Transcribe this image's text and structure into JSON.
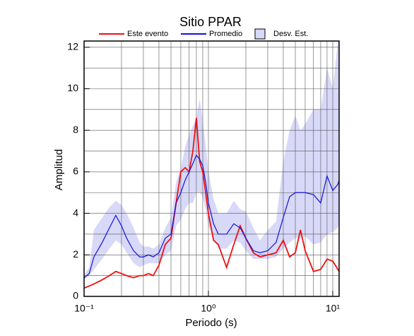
{
  "chart_data": {
    "type": "line",
    "title": "Sitio PPAR",
    "xlabel": "Periodo (s)",
    "ylabel": "Amplitud",
    "log_x": true,
    "grid": true,
    "xlim": [
      0.1,
      11.25
    ],
    "ylim": [
      0,
      12.3
    ],
    "xticks": [
      {
        "value": 0.1,
        "label": "10⁻¹"
      },
      {
        "value": 1,
        "label": "10⁰"
      },
      {
        "value": 10,
        "label": "10¹"
      }
    ],
    "x_minor_ticks": [
      0.2,
      0.3,
      0.4,
      0.5,
      0.6,
      0.7,
      0.8,
      0.9,
      2,
      3,
      4,
      5,
      6,
      7,
      8,
      9
    ],
    "yticks": [
      0,
      2,
      4,
      6,
      8,
      10,
      12
    ],
    "y_minor_ticks": [
      1,
      3,
      5,
      7,
      9,
      11
    ],
    "x": [
      0.1,
      0.11,
      0.12,
      0.14,
      0.16,
      0.18,
      0.2,
      0.22,
      0.25,
      0.28,
      0.3,
      0.33,
      0.36,
      0.4,
      0.45,
      0.5,
      0.55,
      0.6,
      0.65,
      0.7,
      0.75,
      0.8,
      0.85,
      0.9,
      0.95,
      1.0,
      1.1,
      1.2,
      1.4,
      1.6,
      1.8,
      2.0,
      2.3,
      2.6,
      3.0,
      3.5,
      4.0,
      4.5,
      5.0,
      5.5,
      6.0,
      7.0,
      8.0,
      9.0,
      10,
      11,
      11.25
    ],
    "band": {
      "name": "Desv. Est.",
      "color": "#d8d8f8",
      "lower": [
        0.8,
        1.0,
        1.3,
        1.8,
        2.3,
        2.7,
        2.5,
        2.1,
        1.6,
        1.4,
        1.5,
        1.6,
        1.6,
        1.6,
        2.0,
        2.2,
        3.4,
        3.7,
        4.2,
        4.5,
        4.5,
        5.0,
        5.0,
        4.8,
        4.2,
        3.4,
        2.8,
        2.3,
        2.3,
        2.7,
        2.6,
        2.2,
        1.8,
        1.8,
        1.8,
        1.9,
        2.3,
        2.6,
        2.8,
        2.8,
        2.9,
        2.5,
        2.6,
        3.0,
        3.1,
        3.3,
        3.5
      ],
      "upper": [
        1.0,
        1.4,
        3.2,
        3.8,
        4.3,
        4.6,
        4.4,
        4.0,
        3.3,
        2.6,
        2.4,
        2.4,
        2.3,
        2.5,
        3.3,
        3.8,
        5.5,
        6.2,
        7.2,
        7.8,
        8.2,
        8.6,
        9.5,
        8.5,
        7.3,
        6.0,
        4.7,
        4.0,
        4.0,
        4.6,
        4.2,
        4.1,
        3.3,
        2.7,
        3.2,
        3.6,
        6.5,
        8.0,
        8.7,
        8.0,
        8.3,
        9.0,
        9.0,
        11.0,
        10.0,
        12.3,
        12.3
      ]
    },
    "series": [
      {
        "name": "Este evento",
        "color": "#ee1111",
        "values": [
          0.4,
          0.5,
          0.6,
          0.8,
          1.0,
          1.2,
          1.1,
          1.0,
          0.9,
          1.0,
          1.0,
          1.1,
          1.0,
          1.5,
          2.5,
          2.8,
          4.5,
          6.0,
          6.2,
          6.0,
          7.0,
          8.6,
          6.5,
          6.0,
          5.0,
          4.0,
          2.7,
          2.5,
          1.4,
          2.5,
          3.4,
          2.8,
          2.1,
          1.9,
          2.0,
          2.1,
          2.7,
          1.9,
          2.1,
          3.2,
          2.2,
          1.2,
          1.3,
          1.8,
          1.7,
          1.3,
          1.2
        ]
      },
      {
        "name": "Promedio",
        "color": "#1111dd",
        "values": [
          0.9,
          1.1,
          1.9,
          2.6,
          3.3,
          3.9,
          3.4,
          2.8,
          2.2,
          1.9,
          1.9,
          2.0,
          1.9,
          2.1,
          2.8,
          3.0,
          4.5,
          5.0,
          5.6,
          6.0,
          6.4,
          6.8,
          6.6,
          6.3,
          5.5,
          4.5,
          3.5,
          3.0,
          3.0,
          3.5,
          3.3,
          2.8,
          2.2,
          2.1,
          2.2,
          2.6,
          3.8,
          4.8,
          5.0,
          5.0,
          5.0,
          4.9,
          4.5,
          5.8,
          5.1,
          5.4,
          5.6
        ]
      }
    ]
  }
}
